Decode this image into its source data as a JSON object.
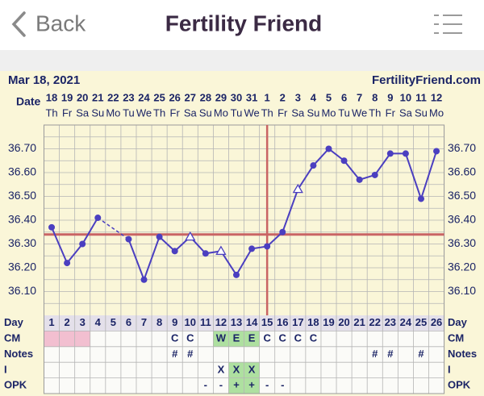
{
  "header": {
    "back": "Back",
    "title": "Fertility Friend"
  },
  "chart_data": {
    "type": "line",
    "date": "Mar 18, 2021",
    "site": "FertilityFriend.com",
    "date_label": "Date",
    "categories": [
      "18",
      "19",
      "20",
      "21",
      "22",
      "23",
      "24",
      "25",
      "26",
      "27",
      "28",
      "29",
      "30",
      "31",
      "1",
      "2",
      "3",
      "4",
      "5",
      "6",
      "7",
      "8",
      "9",
      "10",
      "11",
      "12"
    ],
    "weekdays": [
      "Th",
      "Fr",
      "Sa",
      "Su",
      "Mo",
      "Tu",
      "We",
      "Th",
      "Fr",
      "Sa",
      "Su",
      "Mo",
      "Tu",
      "We",
      "Th",
      "Fr",
      "Sa",
      "Su",
      "Mo",
      "Tu",
      "We",
      "Th",
      "Fr",
      "Sa",
      "Su",
      "Mo"
    ],
    "series": [
      {
        "color": "#4b3fc0",
        "values": [
          36.37,
          36.22,
          36.3,
          36.41,
          null,
          36.32,
          36.15,
          36.33,
          36.27,
          36.33,
          36.26,
          36.27,
          36.17,
          36.28,
          36.29,
          36.35,
          36.53,
          36.63,
          36.7,
          36.65,
          36.57,
          36.59,
          36.68,
          36.68,
          36.49,
          36.69
        ],
        "markers": [
          "circle",
          "circle",
          "circle",
          "circle",
          null,
          "circle",
          "circle",
          "circle",
          "circle",
          "triangle",
          "circle",
          "triangle",
          "circle",
          "circle",
          "circle",
          "circle",
          "triangle",
          "circle",
          "circle",
          "circle",
          "circle",
          "circle",
          "circle",
          "circle",
          "circle",
          "circle"
        ]
      }
    ],
    "ylim": [
      36.0,
      36.8
    ],
    "yticks": [
      {
        "value": 36.1,
        "label": "36.10"
      },
      {
        "value": 36.2,
        "label": "36.20"
      },
      {
        "value": 36.3,
        "label": "36.30"
      },
      {
        "value": 36.4,
        "label": "36.40"
      },
      {
        "value": 36.5,
        "label": "36.50"
      },
      {
        "value": 36.6,
        "label": "36.60"
      },
      {
        "value": 36.7,
        "label": "36.70"
      }
    ],
    "grid": true,
    "coverline": 36.34,
    "coverline_color": "#c96464",
    "ovulation_day": 15,
    "table": {
      "rows": [
        {
          "label": "Day",
          "cells": [
            1,
            2,
            3,
            4,
            5,
            6,
            7,
            8,
            9,
            10,
            11,
            12,
            13,
            14,
            15,
            16,
            17,
            18,
            19,
            20,
            21,
            22,
            23,
            24,
            25,
            26
          ]
        },
        {
          "label": "CM",
          "cells": [
            null,
            null,
            null,
            null,
            null,
            null,
            null,
            null,
            "C",
            "C",
            null,
            "W",
            "E",
            "E",
            "C",
            "C",
            "C",
            "C",
            null,
            null,
            null,
            null,
            null,
            null,
            null,
            null
          ],
          "fills": [
            "#f2bfd0",
            "#f2bfd0",
            "#f2bfd0",
            null,
            null,
            null,
            null,
            null,
            null,
            null,
            null,
            "#aee0a0",
            "#aee0a0",
            "#aee0a0",
            null,
            null,
            null,
            null,
            null,
            null,
            null,
            null,
            null,
            null,
            null,
            null
          ]
        },
        {
          "label": "Notes",
          "cells": [
            null,
            null,
            null,
            null,
            null,
            null,
            null,
            null,
            "#",
            "#",
            null,
            null,
            null,
            null,
            null,
            null,
            null,
            null,
            null,
            null,
            null,
            "#",
            "#",
            null,
            "#",
            null
          ]
        },
        {
          "label": "I",
          "cells": [
            null,
            null,
            null,
            null,
            null,
            null,
            null,
            null,
            null,
            null,
            null,
            "X",
            "X",
            "X",
            null,
            null,
            null,
            null,
            null,
            null,
            null,
            null,
            null,
            null,
            null,
            null
          ],
          "fills": [
            null,
            null,
            null,
            null,
            null,
            null,
            null,
            null,
            null,
            null,
            null,
            null,
            "#aee0a0",
            "#aee0a0",
            null,
            null,
            null,
            null,
            null,
            null,
            null,
            null,
            null,
            null,
            null,
            null
          ]
        },
        {
          "label": "OPK",
          "cells": [
            null,
            null,
            null,
            null,
            null,
            null,
            null,
            null,
            null,
            null,
            "-",
            "-",
            "+",
            "+",
            "-",
            "-",
            null,
            null,
            null,
            null,
            null,
            null,
            null,
            null,
            null,
            null
          ],
          "fills": [
            null,
            null,
            null,
            null,
            null,
            null,
            null,
            null,
            null,
            null,
            null,
            null,
            "#aee0a0",
            "#aee0a0",
            null,
            null,
            null,
            null,
            null,
            null,
            null,
            null,
            null,
            null,
            null,
            null
          ]
        }
      ]
    }
  }
}
